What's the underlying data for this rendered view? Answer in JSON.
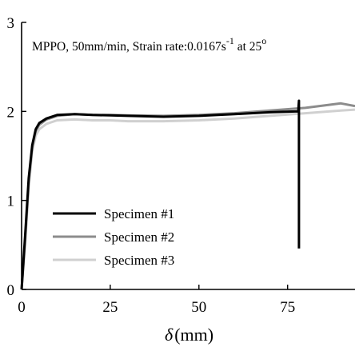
{
  "chart_data": {
    "type": "line",
    "title": "",
    "annotation": {
      "prefix": "MPPO, 50mm/min, Strain rate:0.0167s",
      "exponent": "-1",
      "suffix": " at 25",
      "degree": "o"
    },
    "xlabel": {
      "symbol": "δ",
      "unit": "(mm)"
    },
    "ylabel": "",
    "xlim": [
      0,
      94
    ],
    "ylim": [
      0,
      3
    ],
    "x_ticks": [
      0,
      25,
      50,
      75
    ],
    "y_ticks": [
      0,
      1,
      2,
      3
    ],
    "grid": false,
    "legend": {
      "placement": "bottom-left"
    },
    "series": [
      {
        "name": "Specimen #1",
        "color": "#000000",
        "x": [
          0,
          1,
          2,
          3,
          4,
          5,
          7,
          10,
          15,
          20,
          25,
          30,
          40,
          50,
          60,
          70,
          78,
          78.2,
          78.2
        ],
        "y": [
          0,
          0.6,
          1.25,
          1.62,
          1.8,
          1.87,
          1.92,
          1.96,
          1.97,
          1.96,
          1.955,
          1.95,
          1.94,
          1.95,
          1.97,
          1.99,
          2.0,
          2.12,
          0.46
        ]
      },
      {
        "name": "Specimen #2",
        "color": "#8c8c8c",
        "x": [
          0,
          1,
          2,
          3,
          4,
          5,
          7,
          10,
          15,
          20,
          25,
          30,
          40,
          50,
          60,
          70,
          80,
          90,
          94
        ],
        "y": [
          0,
          0.55,
          1.2,
          1.6,
          1.78,
          1.85,
          1.91,
          1.95,
          1.97,
          1.96,
          1.96,
          1.955,
          1.95,
          1.96,
          1.98,
          2.01,
          2.04,
          2.09,
          2.06
        ]
      },
      {
        "name": "Specimen #3",
        "color": "#d0d0d0",
        "x": [
          0,
          1,
          2,
          3,
          4,
          5,
          7,
          10,
          15,
          20,
          25,
          30,
          40,
          50,
          60,
          70,
          80,
          90,
          94
        ],
        "y": [
          0,
          0.5,
          1.15,
          1.55,
          1.73,
          1.8,
          1.86,
          1.9,
          1.91,
          1.9,
          1.9,
          1.89,
          1.89,
          1.9,
          1.92,
          1.95,
          1.98,
          2.01,
          2.02
        ]
      }
    ]
  }
}
